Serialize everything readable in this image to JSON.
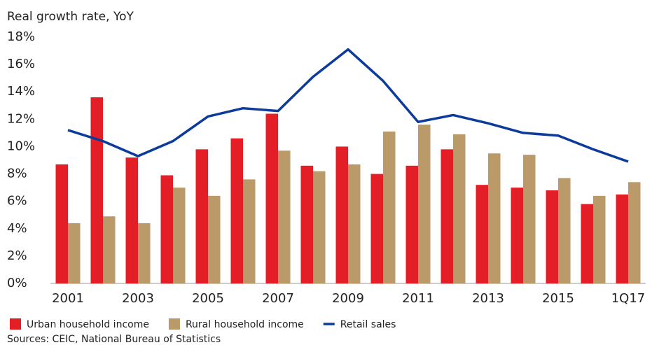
{
  "chart_data": {
    "type": "bar",
    "y_axis_label": "Real growth rate, YoY",
    "source": "Sources: CEIC, National Bureau of Statistics",
    "categories": [
      "2001",
      null,
      "2003",
      null,
      "2005",
      null,
      "2007",
      null,
      "2009",
      null,
      "2011",
      null,
      "2013",
      null,
      "2015",
      null,
      "1Q17"
    ],
    "series": [
      {
        "name": "Urban household income",
        "type": "bar",
        "color": "#e31e26",
        "values": [
          8.7,
          13.6,
          9.2,
          7.9,
          9.8,
          10.6,
          12.4,
          8.6,
          10.0,
          8.0,
          8.6,
          9.8,
          7.2,
          7.0,
          6.8,
          5.8,
          6.5
        ]
      },
      {
        "name": "Rural household income",
        "type": "bar",
        "color": "#b99a68",
        "values": [
          4.4,
          4.9,
          4.4,
          7.0,
          6.4,
          7.6,
          9.7,
          8.2,
          8.7,
          11.1,
          11.6,
          10.9,
          9.5,
          9.4,
          7.7,
          6.4,
          7.4
        ]
      },
      {
        "name": "Retail sales",
        "type": "line",
        "color": "#0c3b9c",
        "values": [
          11.2,
          10.4,
          9.3,
          10.4,
          12.2,
          12.8,
          12.6,
          15.1,
          17.1,
          14.8,
          11.8,
          12.3,
          11.7,
          11.0,
          10.8,
          9.8,
          8.9
        ]
      }
    ],
    "ylim": [
      0,
      18
    ],
    "yticks": [
      {
        "value": 0,
        "label": "0%"
      },
      {
        "value": 2,
        "label": "2%"
      },
      {
        "value": 4,
        "label": "4%"
      },
      {
        "value": 6,
        "label": "6%"
      },
      {
        "value": 8,
        "label": "8%"
      },
      {
        "value": 10,
        "label": "10%"
      },
      {
        "value": 12,
        "label": "12%"
      },
      {
        "value": 14,
        "label": "14%"
      },
      {
        "value": 16,
        "label": "16%"
      },
      {
        "value": 18,
        "label": "18%"
      }
    ]
  }
}
